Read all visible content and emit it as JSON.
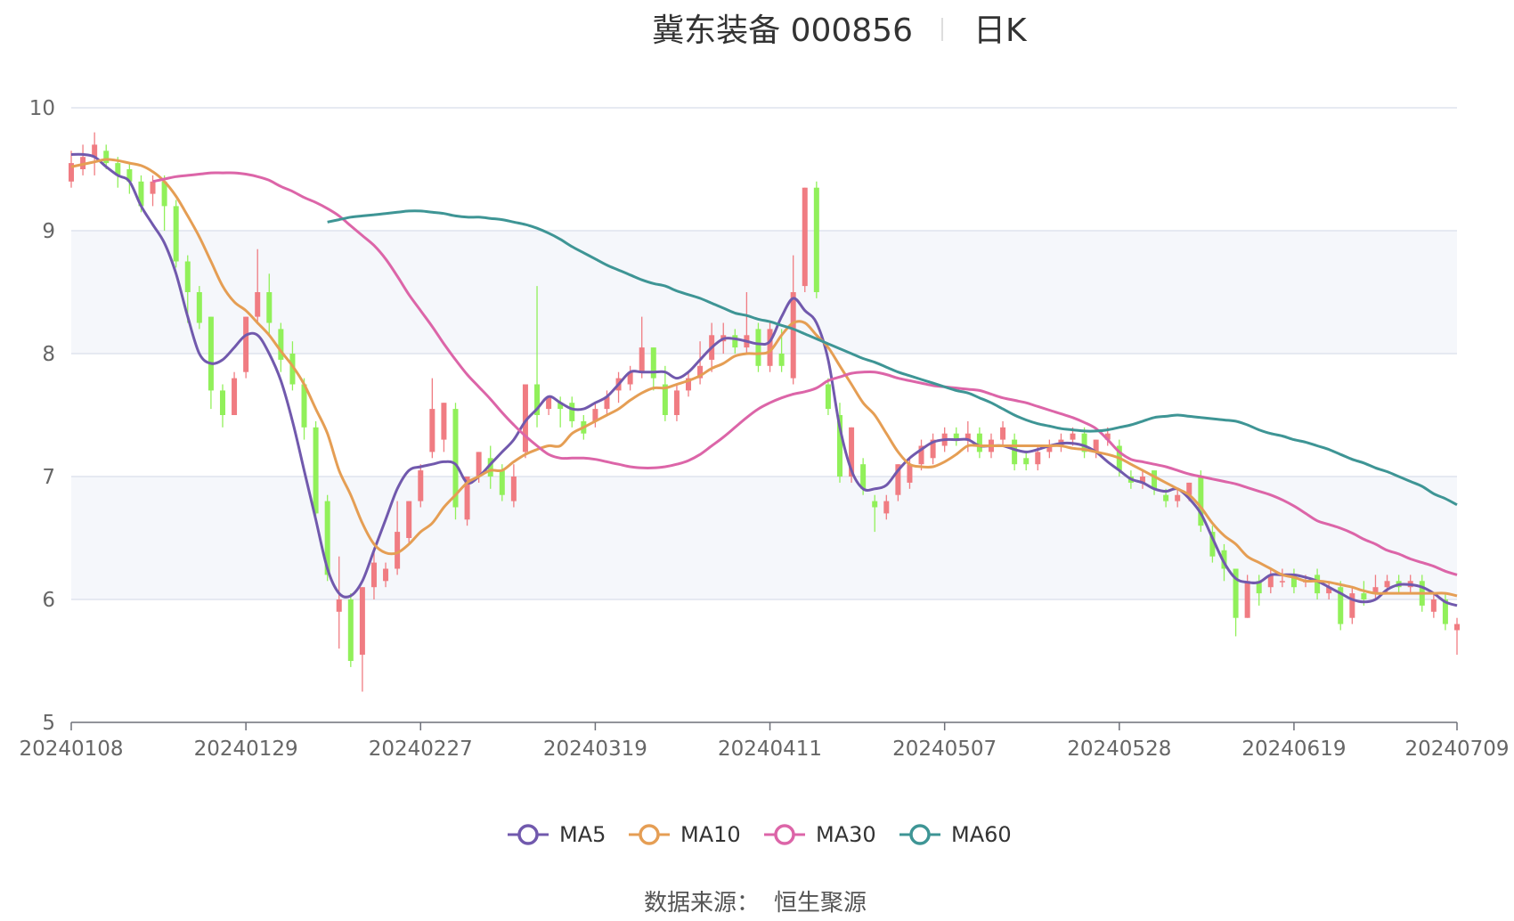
{
  "header": {
    "title": "冀东装备 000856",
    "period": "日K"
  },
  "footer": {
    "source_label": "数据来源：",
    "source_name": "恒生聚源"
  },
  "colors": {
    "up": "#f07c82",
    "down": "#91f05a",
    "MA5": "#7159ad",
    "MA10": "#e59e54",
    "MA30": "#dc65a8",
    "MA60": "#3e9595",
    "band": "#f5f7fb",
    "grid": "#dfe3ee"
  },
  "chart_data": {
    "type": "candlestick",
    "title": "冀东装备 000856",
    "subtitle": "日K",
    "ylim": [
      5,
      10
    ],
    "yticks": [
      "5",
      "6",
      "7",
      "8",
      "9",
      "10"
    ],
    "xticks": [
      "20240108",
      "20240129",
      "20240227",
      "20240319",
      "20240411",
      "20240507",
      "20240528",
      "20240619",
      "20240709"
    ],
    "legend": [
      "MA5",
      "MA10",
      "MA30",
      "MA60"
    ],
    "legend_position": "bottom-center",
    "x_count": 120,
    "tick_indices": [
      0,
      15,
      30,
      45,
      60,
      75,
      90,
      105,
      119
    ],
    "candles": [
      [
        9.4,
        9.55,
        9.65,
        9.35
      ],
      [
        9.5,
        9.6,
        9.7,
        9.45
      ],
      [
        9.6,
        9.7,
        9.8,
        9.45
      ],
      [
        9.65,
        9.55,
        9.7,
        9.5
      ],
      [
        9.55,
        9.45,
        9.6,
        9.35
      ],
      [
        9.5,
        9.4,
        9.55,
        9.3
      ],
      [
        9.4,
        9.2,
        9.45,
        9.15
      ],
      [
        9.3,
        9.4,
        9.45,
        9.2
      ],
      [
        9.4,
        9.2,
        9.45,
        9.0
      ],
      [
        9.2,
        8.75,
        9.25,
        8.7
      ],
      [
        8.75,
        8.5,
        8.8,
        8.25
      ],
      [
        8.5,
        8.25,
        8.55,
        8.2
      ],
      [
        8.3,
        7.7,
        8.3,
        7.55
      ],
      [
        7.7,
        7.5,
        7.75,
        7.4
      ],
      [
        7.5,
        7.8,
        7.85,
        7.5
      ],
      [
        7.85,
        8.3,
        8.3,
        7.8
      ],
      [
        8.3,
        8.5,
        8.85,
        8.25
      ],
      [
        8.5,
        8.25,
        8.65,
        8.15
      ],
      [
        8.2,
        7.95,
        8.25,
        7.85
      ],
      [
        8.0,
        7.75,
        8.1,
        7.7
      ],
      [
        7.75,
        7.4,
        7.8,
        7.3
      ],
      [
        7.4,
        6.7,
        7.45,
        6.65
      ],
      [
        6.8,
        6.2,
        6.85,
        6.15
      ],
      [
        5.9,
        6.0,
        6.35,
        5.6
      ],
      [
        6.0,
        5.5,
        6.05,
        5.45
      ],
      [
        5.55,
        6.1,
        6.1,
        5.25
      ],
      [
        6.1,
        6.3,
        6.4,
        6.0
      ],
      [
        6.15,
        6.25,
        6.3,
        6.1
      ],
      [
        6.25,
        6.55,
        6.8,
        6.2
      ],
      [
        6.5,
        6.8,
        6.8,
        6.45
      ],
      [
        6.8,
        7.05,
        7.1,
        6.75
      ],
      [
        7.2,
        7.55,
        7.8,
        7.15
      ],
      [
        7.3,
        7.6,
        7.6,
        7.2
      ],
      [
        7.55,
        6.75,
        7.6,
        6.65
      ],
      [
        6.65,
        7.0,
        7.0,
        6.6
      ],
      [
        7.0,
        7.2,
        7.2,
        6.95
      ],
      [
        7.15,
        7.0,
        7.25,
        6.9
      ],
      [
        7.05,
        6.85,
        7.1,
        6.8
      ],
      [
        6.8,
        7.0,
        7.1,
        6.75
      ],
      [
        7.2,
        7.75,
        7.75,
        7.15
      ],
      [
        7.75,
        7.5,
        8.55,
        7.4
      ],
      [
        7.55,
        7.65,
        7.65,
        7.5
      ],
      [
        7.6,
        7.55,
        7.65,
        7.4
      ],
      [
        7.6,
        7.45,
        7.65,
        7.4
      ],
      [
        7.45,
        7.35,
        7.5,
        7.3
      ],
      [
        7.45,
        7.55,
        7.6,
        7.4
      ],
      [
        7.55,
        7.65,
        7.7,
        7.5
      ],
      [
        7.7,
        7.8,
        7.85,
        7.6
      ],
      [
        7.75,
        7.85,
        7.9,
        7.7
      ],
      [
        7.85,
        8.05,
        8.3,
        7.8
      ],
      [
        8.05,
        7.8,
        8.05,
        7.7
      ],
      [
        7.75,
        7.5,
        7.9,
        7.45
      ],
      [
        7.5,
        7.7,
        7.75,
        7.45
      ],
      [
        7.7,
        7.8,
        7.85,
        7.65
      ],
      [
        7.8,
        7.9,
        8.1,
        7.75
      ],
      [
        7.95,
        8.15,
        8.25,
        7.85
      ],
      [
        8.1,
        8.15,
        8.25,
        8.0
      ],
      [
        8.15,
        8.05,
        8.2,
        8.0
      ],
      [
        8.05,
        8.15,
        8.5,
        8.0
      ],
      [
        8.2,
        7.9,
        8.25,
        7.85
      ],
      [
        7.9,
        8.2,
        8.25,
        7.85
      ],
      [
        8.0,
        7.9,
        8.2,
        7.85
      ],
      [
        7.8,
        8.5,
        8.8,
        7.75
      ],
      [
        8.55,
        9.35,
        9.35,
        8.5
      ],
      [
        9.35,
        8.5,
        9.4,
        8.45
      ],
      [
        7.75,
        7.55,
        7.8,
        7.5
      ],
      [
        7.5,
        7.0,
        7.6,
        6.95
      ],
      [
        7.0,
        7.4,
        7.4,
        6.95
      ],
      [
        7.1,
        6.9,
        7.15,
        6.85
      ],
      [
        6.8,
        6.75,
        6.85,
        6.55
      ],
      [
        6.7,
        6.8,
        6.85,
        6.65
      ],
      [
        6.85,
        7.1,
        7.1,
        6.8
      ],
      [
        6.95,
        7.1,
        7.15,
        6.9
      ],
      [
        7.1,
        7.25,
        7.3,
        7.05
      ],
      [
        7.15,
        7.3,
        7.35,
        7.1
      ],
      [
        7.25,
        7.35,
        7.4,
        7.2
      ],
      [
        7.35,
        7.3,
        7.4,
        7.25
      ],
      [
        7.3,
        7.35,
        7.45,
        7.2
      ],
      [
        7.35,
        7.2,
        7.4,
        7.15
      ],
      [
        7.2,
        7.3,
        7.35,
        7.15
      ],
      [
        7.3,
        7.4,
        7.45,
        7.25
      ],
      [
        7.3,
        7.1,
        7.35,
        7.05
      ],
      [
        7.15,
        7.1,
        7.2,
        7.05
      ],
      [
        7.1,
        7.2,
        7.25,
        7.05
      ],
      [
        7.2,
        7.25,
        7.3,
        7.15
      ],
      [
        7.25,
        7.3,
        7.35,
        7.2
      ],
      [
        7.3,
        7.35,
        7.4,
        7.25
      ],
      [
        7.35,
        7.2,
        7.4,
        7.15
      ],
      [
        7.2,
        7.3,
        7.3,
        7.15
      ],
      [
        7.3,
        7.35,
        7.4,
        7.25
      ],
      [
        7.25,
        7.05,
        7.3,
        7.0
      ],
      [
        7.0,
        6.95,
        7.05,
        6.9
      ],
      [
        6.95,
        7.0,
        7.05,
        6.9
      ],
      [
        7.05,
        6.9,
        7.05,
        6.85
      ],
      [
        6.85,
        6.8,
        6.9,
        6.75
      ],
      [
        6.8,
        6.85,
        6.9,
        6.75
      ],
      [
        6.85,
        6.95,
        6.95,
        6.8
      ],
      [
        7.0,
        6.6,
        7.05,
        6.55
      ],
      [
        6.55,
        6.35,
        6.6,
        6.3
      ],
      [
        6.4,
        6.25,
        6.45,
        6.15
      ],
      [
        6.25,
        5.85,
        6.25,
        5.7
      ],
      [
        5.85,
        6.15,
        6.2,
        5.85
      ],
      [
        6.15,
        6.05,
        6.2,
        5.95
      ],
      [
        6.1,
        6.2,
        6.25,
        6.05
      ],
      [
        6.15,
        6.15,
        6.25,
        6.1
      ],
      [
        6.2,
        6.1,
        6.25,
        6.05
      ],
      [
        6.15,
        6.15,
        6.2,
        6.1
      ],
      [
        6.2,
        6.05,
        6.25,
        6.0
      ],
      [
        6.05,
        6.1,
        6.15,
        6.0
      ],
      [
        6.1,
        5.8,
        6.15,
        5.75
      ],
      [
        5.85,
        6.05,
        6.1,
        5.8
      ],
      [
        6.05,
        6.0,
        6.15,
        5.95
      ],
      [
        6.05,
        6.1,
        6.2,
        6.0
      ],
      [
        6.1,
        6.15,
        6.2,
        6.05
      ],
      [
        6.15,
        6.1,
        6.2,
        6.05
      ],
      [
        6.1,
        6.15,
        6.2,
        6.05
      ],
      [
        6.15,
        5.95,
        6.2,
        5.9
      ],
      [
        5.9,
        6.0,
        6.05,
        5.85
      ],
      [
        6.0,
        5.8,
        6.05,
        5.75
      ],
      [
        5.75,
        5.8,
        5.85,
        5.55
      ]
    ],
    "series": [
      {
        "name": "MA5",
        "values": [
          9.62,
          9.62,
          9.6,
          9.52,
          9.45,
          9.4,
          9.2,
          9.05,
          8.9,
          8.65,
          8.3,
          8.0,
          7.92,
          7.95,
          8.05,
          8.15,
          8.15,
          8.0,
          7.78,
          7.45,
          7.05,
          6.65,
          6.25,
          6.05,
          6.03,
          6.15,
          6.4,
          6.65,
          6.9,
          7.05,
          7.08,
          7.1,
          7.12,
          7.1,
          6.95,
          7.0,
          7.1,
          7.2,
          7.3,
          7.45,
          7.55,
          7.65,
          7.6,
          7.55,
          7.55,
          7.6,
          7.65,
          7.75,
          7.85,
          7.85,
          7.85,
          7.85,
          7.8,
          7.85,
          7.95,
          8.05,
          8.12,
          8.12,
          8.1,
          8.08,
          8.1,
          8.3,
          8.45,
          8.35,
          8.25,
          7.95,
          7.4,
          7.05,
          6.9,
          6.9,
          6.93,
          7.05,
          7.15,
          7.22,
          7.28,
          7.3,
          7.3,
          7.3,
          7.25,
          7.25,
          7.25,
          7.22,
          7.2,
          7.22,
          7.25,
          7.27,
          7.27,
          7.25,
          7.2,
          7.12,
          7.05,
          6.98,
          6.95,
          6.9,
          6.88,
          6.9,
          6.82,
          6.7,
          6.5,
          6.3,
          6.17,
          6.14,
          6.14,
          6.2,
          6.2,
          6.2,
          6.18,
          6.15,
          6.1,
          6.05,
          6.0,
          5.98,
          6.0,
          6.08,
          6.12,
          6.12,
          6.1,
          6.05,
          5.98,
          5.95
        ]
      },
      {
        "name": "MA10",
        "values": [
          9.52,
          9.54,
          9.56,
          9.58,
          9.57,
          9.55,
          9.53,
          9.48,
          9.4,
          9.28,
          9.12,
          8.95,
          8.75,
          8.55,
          8.42,
          8.35,
          8.25,
          8.15,
          8.02,
          7.9,
          7.75,
          7.55,
          7.35,
          7.05,
          6.85,
          6.62,
          6.45,
          6.38,
          6.38,
          6.45,
          6.55,
          6.62,
          6.75,
          6.85,
          6.95,
          7.0,
          7.05,
          7.05,
          7.12,
          7.18,
          7.22,
          7.25,
          7.25,
          7.35,
          7.4,
          7.45,
          7.5,
          7.55,
          7.62,
          7.68,
          7.72,
          7.72,
          7.75,
          7.78,
          7.82,
          7.88,
          7.92,
          7.98,
          8.0,
          8.0,
          8.02,
          8.15,
          8.25,
          8.25,
          8.15,
          8.05,
          7.9,
          7.75,
          7.6,
          7.5,
          7.35,
          7.2,
          7.1,
          7.08,
          7.08,
          7.12,
          7.18,
          7.25,
          7.25,
          7.25,
          7.25,
          7.25,
          7.25,
          7.25,
          7.25,
          7.25,
          7.23,
          7.22,
          7.2,
          7.18,
          7.15,
          7.1,
          7.05,
          7.0,
          6.95,
          6.9,
          6.85,
          6.75,
          6.62,
          6.52,
          6.45,
          6.35,
          6.3,
          6.25,
          6.2,
          6.18,
          6.15,
          6.15,
          6.14,
          6.12,
          6.1,
          6.07,
          6.05,
          6.05,
          6.05,
          6.05,
          6.05,
          6.05,
          6.05,
          6.03
        ]
      },
      {
        "name": "MA30",
        "values": [
          9.4,
          9.42,
          9.44,
          9.45,
          9.46,
          9.47,
          9.47,
          9.47,
          9.46,
          9.44,
          9.41,
          9.36,
          9.32,
          9.27,
          9.23,
          9.18,
          9.12,
          9.04,
          8.96,
          8.88,
          8.77,
          8.63,
          8.48,
          8.35,
          8.22,
          8.08,
          7.95,
          7.83,
          7.73,
          7.63,
          7.52,
          7.42,
          7.33,
          7.25,
          7.18,
          7.15,
          7.15,
          7.15,
          7.14,
          7.12,
          7.1,
          7.08,
          7.07,
          7.07,
          7.08,
          7.1,
          7.13,
          7.18,
          7.25,
          7.32,
          7.4,
          7.48,
          7.55,
          7.6,
          7.64,
          7.67,
          7.69,
          7.72,
          7.78,
          7.81,
          7.84,
          7.85,
          7.85,
          7.83,
          7.8,
          7.78,
          7.76,
          7.74,
          7.73,
          7.72,
          7.71,
          7.7,
          7.67,
          7.64,
          7.62,
          7.6,
          7.57,
          7.54,
          7.51,
          7.48,
          7.44,
          7.39,
          7.3,
          7.2,
          7.14,
          7.12,
          7.1,
          7.08,
          7.05,
          7.02,
          7.0,
          6.98,
          6.96,
          6.94,
          6.91,
          6.88,
          6.85,
          6.81,
          6.76,
          6.7,
          6.64,
          6.61,
          6.58,
          6.54,
          6.49,
          6.45,
          6.4,
          6.37,
          6.33,
          6.3,
          6.27,
          6.23,
          6.2
        ]
      },
      {
        "name": "MA60",
        "values": [
          9.07,
          9.09,
          9.11,
          9.12,
          9.13,
          9.14,
          9.15,
          9.16,
          9.16,
          9.15,
          9.14,
          9.12,
          9.11,
          9.11,
          9.1,
          9.09,
          9.07,
          9.05,
          9.02,
          8.98,
          8.93,
          8.87,
          8.82,
          8.77,
          8.72,
          8.68,
          8.64,
          8.6,
          8.57,
          8.55,
          8.51,
          8.48,
          8.45,
          8.41,
          8.37,
          8.33,
          8.31,
          8.28,
          8.26,
          8.23,
          8.2,
          8.16,
          8.12,
          8.08,
          8.04,
          8.0,
          7.96,
          7.93,
          7.89,
          7.85,
          7.82,
          7.79,
          7.76,
          7.73,
          7.7,
          7.68,
          7.64,
          7.6,
          7.55,
          7.5,
          7.46,
          7.43,
          7.41,
          7.39,
          7.38,
          7.37,
          7.37,
          7.38,
          7.4,
          7.42,
          7.45,
          7.48,
          7.49,
          7.5,
          7.49,
          7.48,
          7.47,
          7.46,
          7.45,
          7.42,
          7.38,
          7.35,
          7.33,
          7.3,
          7.28,
          7.25,
          7.22,
          7.18,
          7.14,
          7.11,
          7.07,
          7.04,
          7.0,
          6.96,
          6.92,
          6.86,
          6.82,
          6.77
        ]
      }
    ]
  }
}
